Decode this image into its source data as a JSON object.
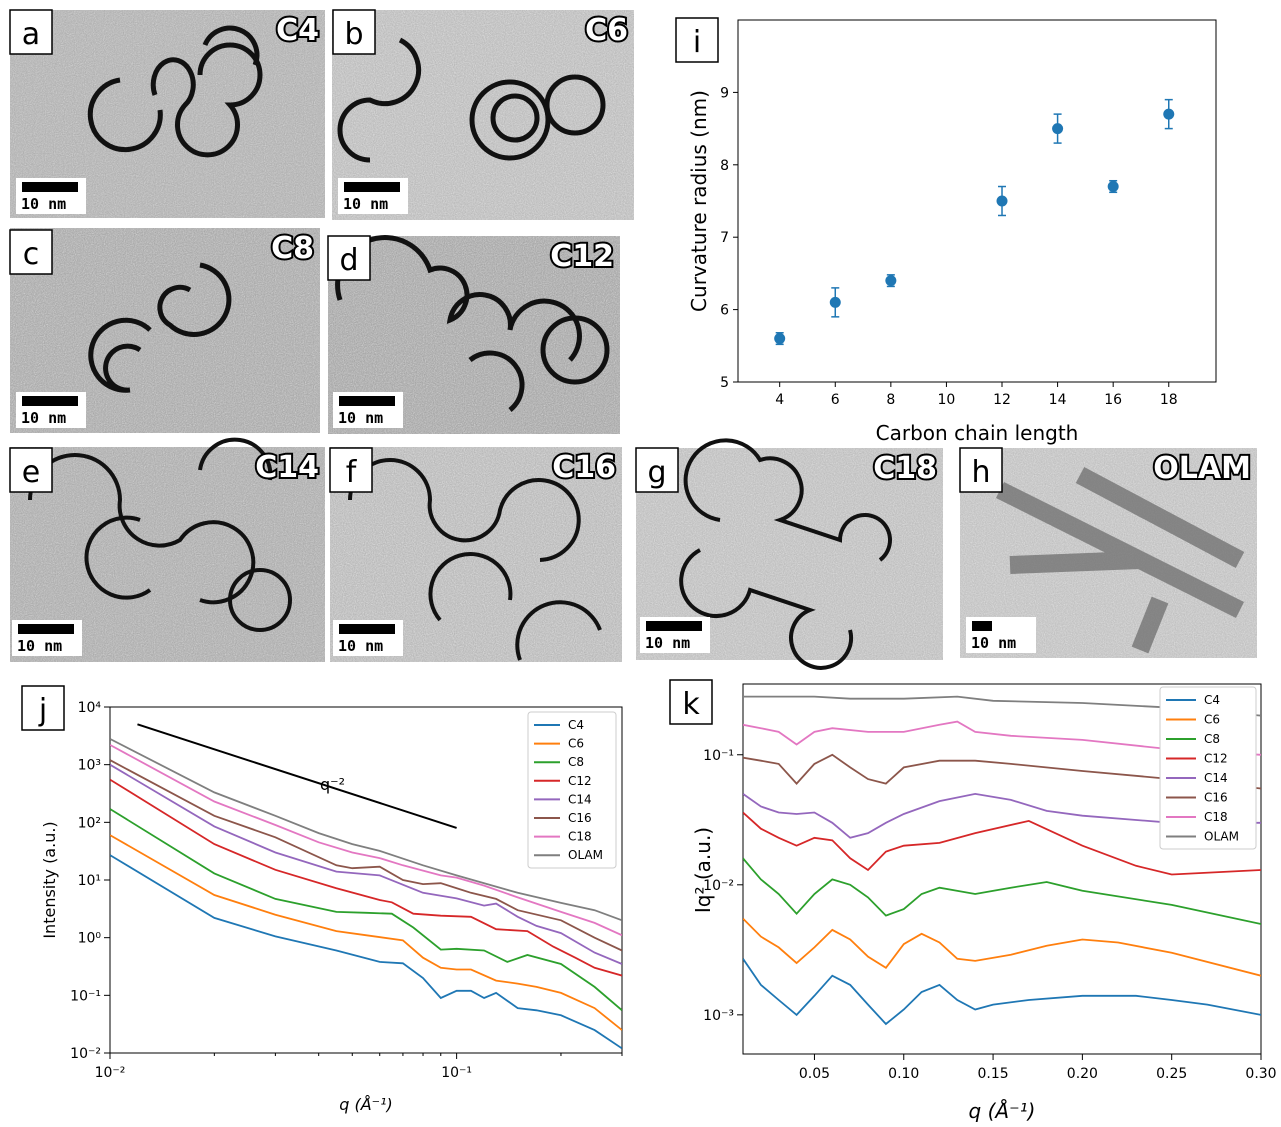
{
  "tem_panels": [
    {
      "letter": "a",
      "tag": "C4",
      "scale": "10 nm"
    },
    {
      "letter": "b",
      "tag": "C6",
      "scale": "10 nm"
    },
    {
      "letter": "c",
      "tag": "C8",
      "scale": "10 nm"
    },
    {
      "letter": "d",
      "tag": "C12",
      "scale": "10 nm"
    },
    {
      "letter": "e",
      "tag": "C14",
      "scale": "10 nm"
    },
    {
      "letter": "f",
      "tag": "C16",
      "scale": "10 nm"
    },
    {
      "letter": "g",
      "tag": "C18",
      "scale": "10 nm"
    },
    {
      "letter": "h",
      "tag": "OLAM",
      "scale": "10 nm"
    }
  ],
  "colors": {
    "C4": "#1f77b4",
    "C6": "#ff7f0e",
    "C8": "#2ca02c",
    "C12": "#d62728",
    "C14": "#9467bd",
    "C16": "#8c564b",
    "C18": "#e377c2",
    "OLAM": "#7f7f7f",
    "marker": "#1f77b4"
  },
  "chart_data": [
    {
      "panel": "i",
      "type": "scatter",
      "xlabel": "Carbon chain length",
      "ylabel": "Curvature radius (nm)",
      "xlim": [
        2.5,
        19.7
      ],
      "ylim": [
        5,
        10
      ],
      "xticks": [
        "4",
        "6",
        "8",
        "10",
        "12",
        "14",
        "16",
        "18"
      ],
      "yticks": [
        "5",
        "6",
        "7",
        "8",
        "9"
      ],
      "x": [
        4,
        6,
        8,
        12,
        14,
        16,
        18
      ],
      "y": [
        5.6,
        6.1,
        6.4,
        7.5,
        8.5,
        7.7,
        8.7
      ],
      "yerr": [
        0.08,
        0.2,
        0.08,
        0.2,
        0.2,
        0.08,
        0.2
      ]
    },
    {
      "panel": "j",
      "type": "line",
      "xscale": "log",
      "yscale": "log",
      "xlabel": "q (Å⁻¹)",
      "ylabel": "Intensity (a.u.)",
      "xlim": [
        0.01,
        0.3
      ],
      "ylim": [
        0.01,
        10000
      ],
      "xticks": [
        "10⁻²",
        "10⁻¹"
      ],
      "yticks": [
        "10⁻²",
        "10⁻¹",
        "10⁰",
        "10¹",
        "10²",
        "10³",
        "10⁴"
      ],
      "annotation": "q⁻²",
      "guide_line": {
        "x": [
          0.012,
          0.1
        ],
        "y": [
          5000,
          80
        ]
      },
      "series": [
        {
          "name": "C4",
          "x": [
            0.01,
            0.02,
            0.03,
            0.045,
            0.06,
            0.07,
            0.08,
            0.09,
            0.1,
            0.11,
            0.12,
            0.13,
            0.15,
            0.17,
            0.2,
            0.25,
            0.3
          ],
          "y": [
            27,
            2.2,
            1.05,
            0.6,
            0.38,
            0.36,
            0.2,
            0.09,
            0.12,
            0.12,
            0.09,
            0.11,
            0.06,
            0.055,
            0.045,
            0.025,
            0.012
          ]
        },
        {
          "name": "C6",
          "x": [
            0.01,
            0.02,
            0.03,
            0.045,
            0.055,
            0.07,
            0.08,
            0.09,
            0.1,
            0.11,
            0.13,
            0.15,
            0.17,
            0.2,
            0.25,
            0.3
          ],
          "y": [
            60,
            5.5,
            2.5,
            1.3,
            1.1,
            0.9,
            0.45,
            0.3,
            0.28,
            0.28,
            0.18,
            0.16,
            0.14,
            0.11,
            0.06,
            0.025
          ]
        },
        {
          "name": "C8",
          "x": [
            0.01,
            0.02,
            0.03,
            0.045,
            0.055,
            0.065,
            0.075,
            0.09,
            0.1,
            0.12,
            0.14,
            0.16,
            0.2,
            0.25,
            0.3
          ],
          "y": [
            170,
            13,
            4.7,
            2.8,
            2.7,
            2.6,
            1.5,
            0.62,
            0.64,
            0.6,
            0.38,
            0.5,
            0.35,
            0.14,
            0.055
          ]
        },
        {
          "name": "C12",
          "x": [
            0.01,
            0.02,
            0.03,
            0.045,
            0.06,
            0.065,
            0.075,
            0.09,
            0.11,
            0.13,
            0.16,
            0.19,
            0.22,
            0.25,
            0.3
          ],
          "y": [
            550,
            42,
            15,
            7.2,
            4.5,
            4.1,
            2.6,
            2.4,
            2.3,
            1.4,
            1.3,
            0.7,
            0.45,
            0.3,
            0.22
          ]
        },
        {
          "name": "C14",
          "x": [
            0.01,
            0.02,
            0.03,
            0.045,
            0.06,
            0.08,
            0.1,
            0.12,
            0.13,
            0.15,
            0.17,
            0.2,
            0.25,
            0.3
          ],
          "y": [
            1000,
            85,
            30,
            14,
            12,
            6,
            4.8,
            3.6,
            3.9,
            2.3,
            1.6,
            1.2,
            0.55,
            0.35
          ]
        },
        {
          "name": "C16",
          "x": [
            0.01,
            0.02,
            0.03,
            0.045,
            0.05,
            0.06,
            0.07,
            0.08,
            0.09,
            0.11,
            0.13,
            0.15,
            0.2,
            0.25,
            0.3
          ],
          "y": [
            1200,
            130,
            55,
            18,
            16,
            17,
            10,
            8.5,
            8.8,
            6,
            4.7,
            3,
            2,
            1,
            0.6
          ]
        },
        {
          "name": "C18",
          "x": [
            0.01,
            0.02,
            0.03,
            0.04,
            0.05,
            0.06,
            0.07,
            0.09,
            0.1,
            0.12,
            0.15,
            0.2,
            0.25,
            0.3
          ],
          "y": [
            2200,
            230,
            90,
            45,
            30,
            24,
            18,
            12,
            11,
            8,
            5,
            2.8,
            1.8,
            1.1
          ]
        },
        {
          "name": "OLAM",
          "x": [
            0.01,
            0.02,
            0.03,
            0.04,
            0.05,
            0.06,
            0.08,
            0.1,
            0.15,
            0.2,
            0.25,
            0.3
          ],
          "y": [
            2800,
            330,
            130,
            65,
            42,
            32,
            18,
            12,
            6,
            4,
            3,
            2
          ]
        }
      ]
    },
    {
      "panel": "k",
      "type": "line",
      "yscale": "log",
      "xlabel": "q (Å⁻¹)",
      "ylabel": "Iq² (a.u.)",
      "xlim": [
        0.01,
        0.3
      ],
      "ylim": [
        0.0005,
        0.35
      ],
      "xticks": [
        "0.05",
        "0.10",
        "0.15",
        "0.20",
        "0.25",
        "0.30"
      ],
      "yticks": [
        "10⁻³",
        "10⁻²",
        "10⁻¹"
      ],
      "series": [
        {
          "name": "C4",
          "x": [
            0.01,
            0.02,
            0.03,
            0.04,
            0.05,
            0.06,
            0.07,
            0.08,
            0.09,
            0.1,
            0.11,
            0.12,
            0.13,
            0.14,
            0.15,
            0.17,
            0.2,
            0.23,
            0.25,
            0.27,
            0.3
          ],
          "y": [
            0.0027,
            0.0017,
            0.0013,
            0.001,
            0.0014,
            0.002,
            0.0017,
            0.0012,
            0.00085,
            0.0011,
            0.0015,
            0.0017,
            0.0013,
            0.0011,
            0.0012,
            0.0013,
            0.0014,
            0.0014,
            0.0013,
            0.0012,
            0.001
          ]
        },
        {
          "name": "C6",
          "x": [
            0.01,
            0.02,
            0.03,
            0.04,
            0.05,
            0.06,
            0.07,
            0.08,
            0.09,
            0.1,
            0.11,
            0.12,
            0.13,
            0.14,
            0.16,
            0.18,
            0.2,
            0.22,
            0.25,
            0.3
          ],
          "y": [
            0.0055,
            0.004,
            0.0033,
            0.0025,
            0.0033,
            0.0045,
            0.0038,
            0.0028,
            0.0023,
            0.0035,
            0.0042,
            0.0036,
            0.0027,
            0.0026,
            0.0029,
            0.0034,
            0.0038,
            0.0036,
            0.003,
            0.002
          ]
        },
        {
          "name": "C8",
          "x": [
            0.01,
            0.02,
            0.03,
            0.04,
            0.05,
            0.06,
            0.07,
            0.08,
            0.09,
            0.1,
            0.11,
            0.12,
            0.14,
            0.16,
            0.18,
            0.2,
            0.25,
            0.3
          ],
          "y": [
            0.016,
            0.011,
            0.0085,
            0.006,
            0.0085,
            0.011,
            0.01,
            0.008,
            0.0058,
            0.0065,
            0.0085,
            0.0095,
            0.0085,
            0.0095,
            0.0105,
            0.009,
            0.007,
            0.005
          ]
        },
        {
          "name": "C12",
          "x": [
            0.01,
            0.02,
            0.03,
            0.04,
            0.05,
            0.06,
            0.07,
            0.08,
            0.09,
            0.1,
            0.12,
            0.14,
            0.17,
            0.2,
            0.23,
            0.25,
            0.3
          ],
          "y": [
            0.036,
            0.027,
            0.023,
            0.02,
            0.023,
            0.022,
            0.016,
            0.013,
            0.018,
            0.02,
            0.021,
            0.025,
            0.031,
            0.02,
            0.014,
            0.012,
            0.013
          ]
        },
        {
          "name": "C14",
          "x": [
            0.01,
            0.02,
            0.03,
            0.04,
            0.05,
            0.06,
            0.07,
            0.08,
            0.09,
            0.1,
            0.12,
            0.14,
            0.16,
            0.18,
            0.2,
            0.25,
            0.3
          ],
          "y": [
            0.05,
            0.04,
            0.036,
            0.035,
            0.036,
            0.03,
            0.023,
            0.025,
            0.03,
            0.035,
            0.044,
            0.05,
            0.045,
            0.037,
            0.034,
            0.03,
            0.03
          ]
        },
        {
          "name": "C16",
          "x": [
            0.01,
            0.02,
            0.03,
            0.04,
            0.05,
            0.06,
            0.07,
            0.08,
            0.09,
            0.1,
            0.12,
            0.14,
            0.16,
            0.2,
            0.25,
            0.3
          ],
          "y": [
            0.095,
            0.09,
            0.085,
            0.06,
            0.085,
            0.1,
            0.08,
            0.065,
            0.06,
            0.08,
            0.09,
            0.09,
            0.085,
            0.075,
            0.065,
            0.055
          ]
        },
        {
          "name": "C18",
          "x": [
            0.01,
            0.02,
            0.03,
            0.04,
            0.05,
            0.06,
            0.08,
            0.1,
            0.12,
            0.13,
            0.14,
            0.16,
            0.2,
            0.25,
            0.3
          ],
          "y": [
            0.17,
            0.16,
            0.15,
            0.12,
            0.15,
            0.16,
            0.15,
            0.15,
            0.17,
            0.18,
            0.15,
            0.14,
            0.13,
            0.11,
            0.1
          ]
        },
        {
          "name": "OLAM",
          "x": [
            0.01,
            0.05,
            0.07,
            0.1,
            0.13,
            0.15,
            0.2,
            0.25,
            0.3
          ],
          "y": [
            0.28,
            0.28,
            0.27,
            0.27,
            0.28,
            0.26,
            0.25,
            0.23,
            0.2
          ]
        }
      ]
    }
  ]
}
